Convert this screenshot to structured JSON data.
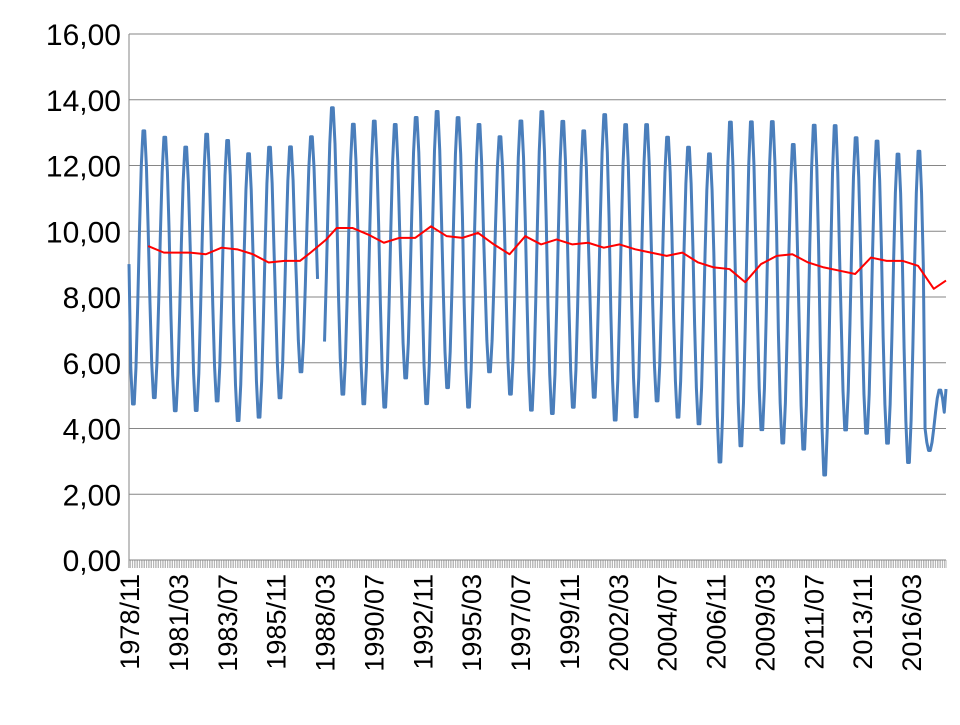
{
  "chart_data": {
    "type": "line",
    "title": "",
    "xlabel": "",
    "ylabel": "",
    "ylim": [
      0,
      16
    ],
    "x_start": "1978/11",
    "x_end": "2017/11",
    "x_frequency": "monthly",
    "y_ticks": [
      "0,00",
      "2,00",
      "4,00",
      "6,00",
      "8,00",
      "10,00",
      "12,00",
      "14,00",
      "16,00"
    ],
    "x_ticks": [
      "1978/11",
      "1981/03",
      "1983/07",
      "1985/11",
      "1988/03",
      "1990/07",
      "1992/11",
      "1995/03",
      "1997/07",
      "1999/11",
      "2002/03",
      "2004/07",
      "2006/11",
      "2009/03",
      "2011/07",
      "2013/11",
      "2016/03"
    ],
    "grid": "horizontal",
    "legend": "none",
    "series": [
      {
        "color": "#4a7ebb",
        "style": "monthly seasonal",
        "annual_min": [
          4.6,
          4.8,
          4.4,
          4.4,
          4.7,
          4.1,
          4.2,
          4.8,
          5.6,
          5.4,
          4.9,
          4.6,
          4.5,
          5.4,
          4.6,
          5.1,
          4.5,
          5.6,
          4.9,
          4.4,
          4.3,
          4.5,
          4.8,
          4.1,
          4.2,
          4.7,
          4.2,
          4.0,
          2.8,
          3.3,
          3.8,
          3.4,
          3.2,
          2.4,
          3.8,
          3.7,
          3.4,
          2.8,
          3.3
        ],
        "annual_max": [
          13.2,
          13.0,
          12.7,
          13.1,
          12.9,
          12.5,
          12.7,
          12.7,
          13.0,
          13.9,
          13.4,
          13.5,
          13.4,
          13.6,
          13.8,
          13.6,
          13.4,
          13.0,
          13.5,
          13.8,
          13.5,
          13.2,
          13.7,
          13.4,
          13.4,
          13.0,
          12.7,
          12.5,
          13.5,
          13.5,
          13.5,
          12.8,
          13.4,
          13.4,
          13.0,
          12.9,
          12.5,
          12.6,
          5.2
        ],
        "gaps": [
          [
            "1987/12",
            "1988/02"
          ]
        ]
      },
      {
        "color": "#ff0000",
        "style": "12-month moving average",
        "x": [
          "1979/10",
          "1980/07",
          "1981/10",
          "1982/07",
          "1983/04",
          "1984/01",
          "1984/10",
          "1985/07",
          "1986/04",
          "1987/01",
          "1987/07",
          "1988/04",
          "1988/10",
          "1989/07",
          "1990/04",
          "1991/01",
          "1991/10",
          "1992/07",
          "1993/04",
          "1994/01",
          "1994/10",
          "1995/07",
          "1996/04",
          "1997/01",
          "1997/10",
          "1998/07",
          "1999/04",
          "2000/01",
          "2000/10",
          "2001/07",
          "2002/04",
          "2003/01",
          "2003/10",
          "2004/07",
          "2005/04",
          "2006/01",
          "2006/10",
          "2007/07",
          "2008/04",
          "2009/01",
          "2009/10",
          "2010/07",
          "2011/04",
          "2012/01",
          "2012/10",
          "2013/07",
          "2014/04",
          "2015/01",
          "2015/10",
          "2016/07",
          "2017/04",
          "2017/11"
        ],
        "values": [
          9.55,
          9.35,
          9.35,
          9.3,
          9.5,
          9.45,
          9.3,
          9.05,
          9.1,
          9.1,
          9.35,
          9.75,
          10.1,
          10.1,
          9.9,
          9.65,
          9.8,
          9.8,
          10.15,
          9.85,
          9.8,
          9.95,
          9.6,
          9.3,
          9.85,
          9.6,
          9.75,
          9.6,
          9.65,
          9.5,
          9.6,
          9.45,
          9.35,
          9.25,
          9.35,
          9.05,
          8.9,
          8.85,
          8.45,
          9.0,
          9.25,
          9.3,
          9.05,
          8.9,
          8.8,
          8.7,
          9.2,
          9.1,
          9.1,
          8.95,
          8.25,
          8.5
        ]
      }
    ]
  }
}
